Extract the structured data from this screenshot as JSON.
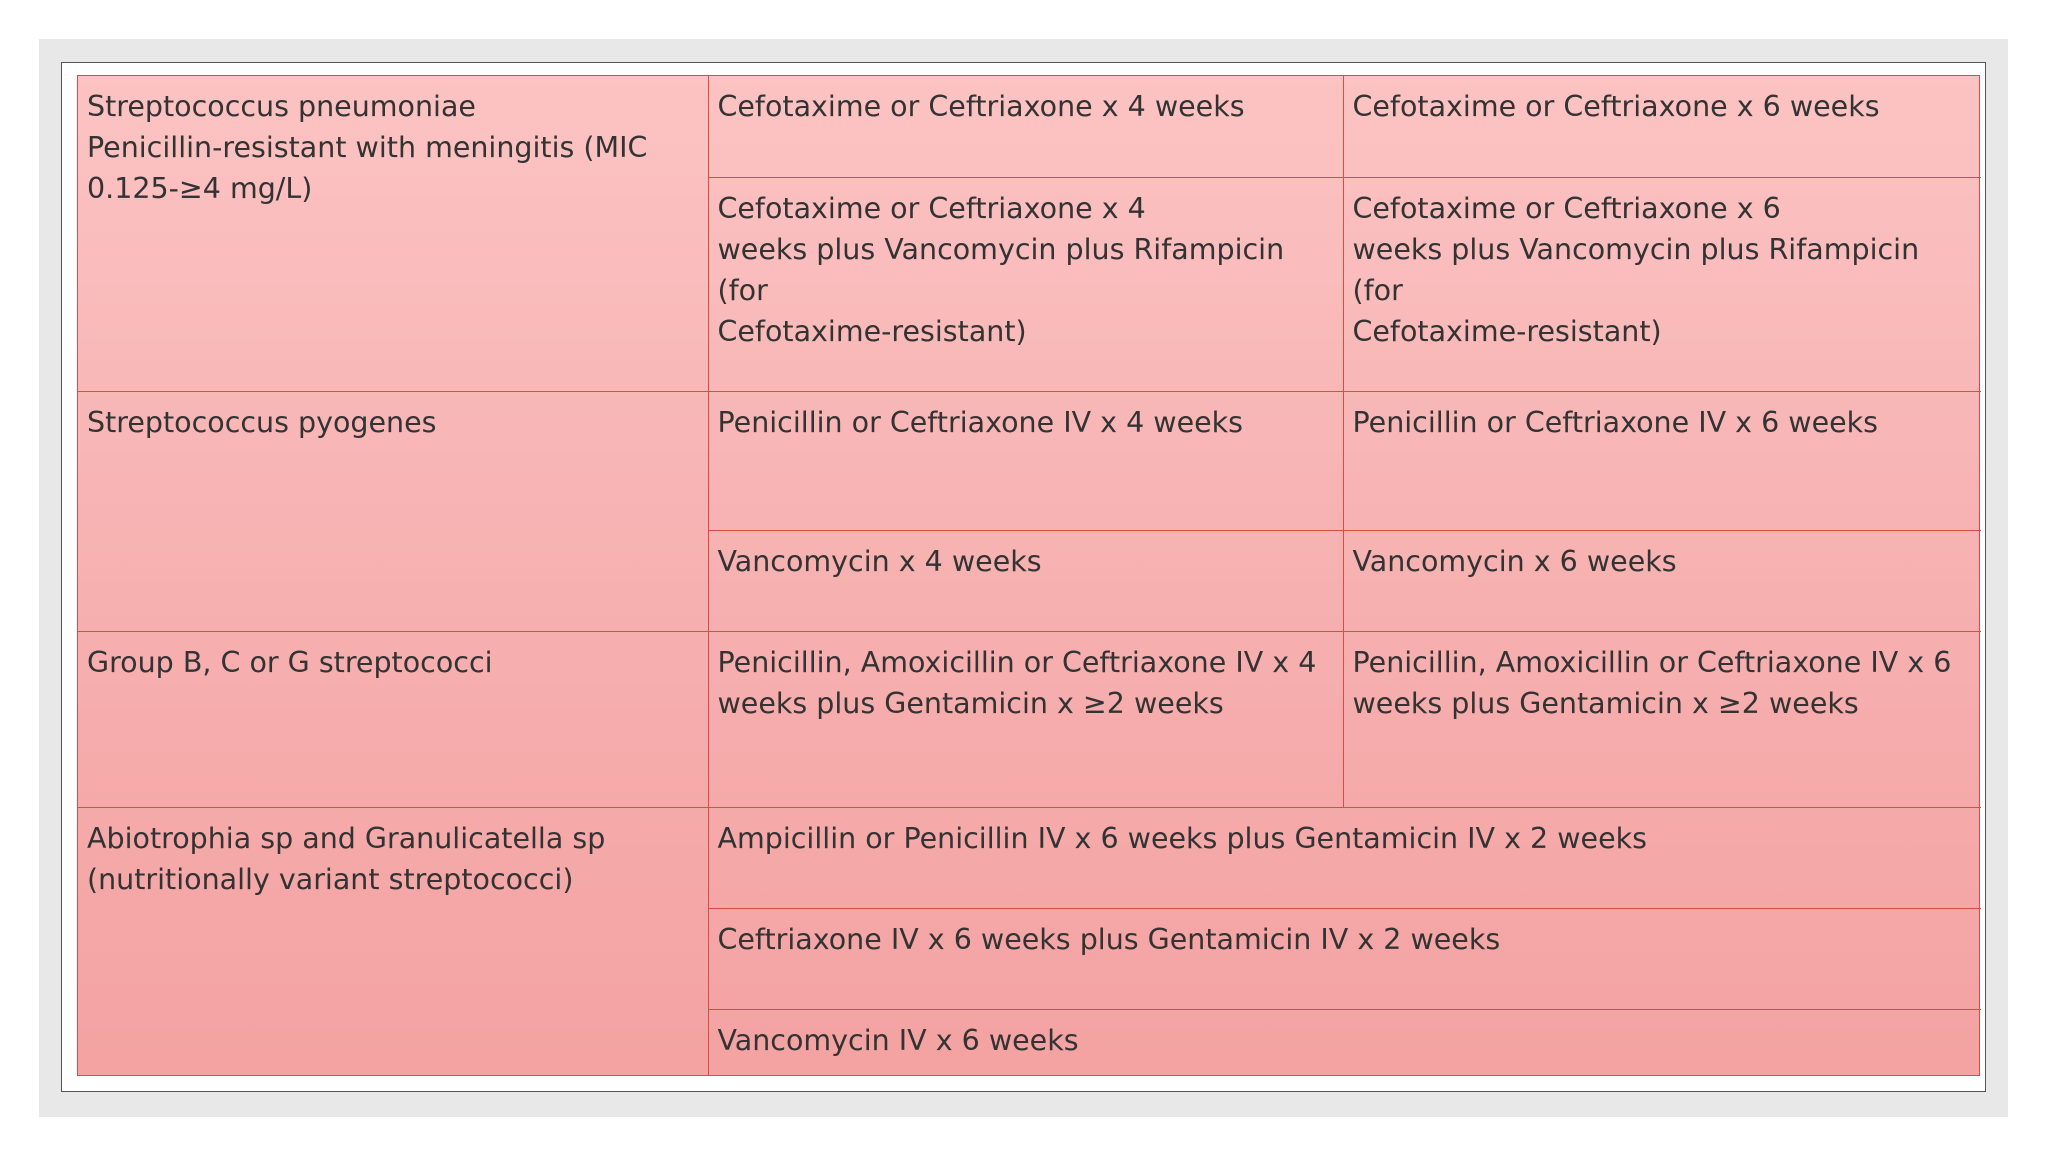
{
  "table": {
    "rows": [
      {
        "organism": [
          "Streptococcus pneumoniae",
          "Penicillin-resistant with meningitis (MIC",
          "0.125-≥4 mg/L)"
        ],
        "options": [
          {
            "col2": "Cefotaxime or Ceftriaxone x 4 weeks",
            "col3": "Cefotaxime or Ceftriaxone x 6 weeks"
          },
          {
            "col2": "Cefotaxime or Ceftriaxone x 4\nweeks plus Vancomycin plus Rifampicin (for\nCefotaxime-resistant)",
            "col3": "Cefotaxime or Ceftriaxone x 6\nweeks plus Vancomycin plus Rifampicin (for\nCefotaxime-resistant)"
          }
        ]
      },
      {
        "organism": [
          "Streptococcus pyogenes"
        ],
        "options": [
          {
            "col2": "Penicillin or Ceftriaxone IV x 4 weeks",
            "col3": "Penicillin or Ceftriaxone IV x 6 weeks"
          },
          {
            "col2": "Vancomycin x 4 weeks",
            "col3": "Vancomycin x 6 weeks"
          }
        ]
      },
      {
        "organism": [
          "Group B, C or G streptococci"
        ],
        "options": [
          {
            "col2": "Penicillin, Amoxicillin or Ceftriaxone IV x 4\nweeks plus Gentamicin x ≥2 weeks",
            "col3": "Penicillin, Amoxicillin or Ceftriaxone IV x 6\nweeks plus Gentamicin x ≥2 weeks"
          }
        ]
      },
      {
        "organism": [
          "Abiotrophia sp and Granulicatella sp",
          "(nutritionally variant streptococci)"
        ],
        "options": [
          {
            "merged": "Ampicillin or Penicillin IV x 6 weeks plus Gentamicin IV x 2 weeks"
          },
          {
            "merged": "Ceftriaxone IV x 6 weeks plus Gentamicin IV x 2 weeks"
          },
          {
            "merged": "Vancomycin IV x 6 weeks"
          }
        ]
      }
    ]
  },
  "colors": {
    "table_fill_top": "#fcc3c3",
    "table_fill_bottom": "#f4a2a2",
    "table_border": "#e04a44",
    "text": "#333333",
    "frame_background": "#e8e8e8"
  }
}
